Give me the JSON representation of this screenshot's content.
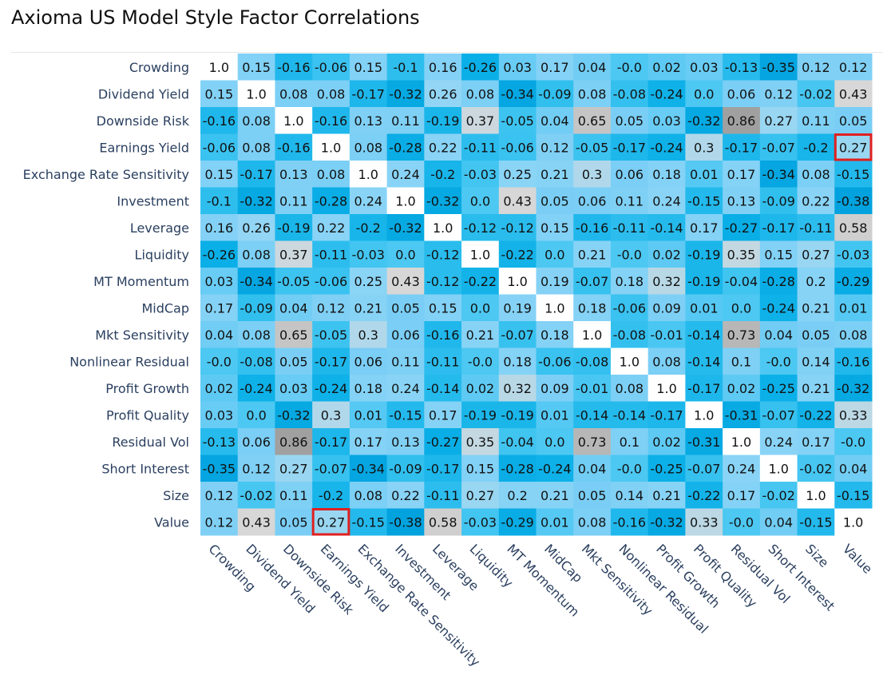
{
  "chart_data": {
    "type": "heatmap",
    "title": "Axioma US Model Style Factor Correlations",
    "labels": [
      "Crowding",
      "Dividend Yield",
      "Downside Risk",
      "Earnings Yield",
      "Exchange Rate Sensitivity",
      "Investment",
      "Leverage",
      "Liquidity",
      "MT Momentum",
      "MidCap",
      "Mkt Sensitivity",
      "Nonlinear Residual",
      "Profit Growth",
      "Profit Quality",
      "Residual Vol",
      "Short Interest",
      "Size",
      "Value"
    ],
    "values": [
      [
        "1.0",
        "0.15",
        "-0.16",
        "-0.06",
        "0.15",
        "-0.1",
        "0.16",
        "-0.26",
        "0.03",
        "0.17",
        "0.04",
        "-0.0",
        "0.02",
        "0.03",
        "-0.13",
        "-0.35",
        "0.12",
        "0.12"
      ],
      [
        "0.15",
        "1.0",
        "0.08",
        "0.08",
        "-0.17",
        "-0.32",
        "0.26",
        "0.08",
        "-0.34",
        "-0.09",
        "0.08",
        "-0.08",
        "-0.24",
        "0.0",
        "0.06",
        "0.12",
        "-0.02",
        "0.43"
      ],
      [
        "-0.16",
        "0.08",
        "1.0",
        "-0.16",
        "0.13",
        "0.11",
        "-0.19",
        "0.37",
        "-0.05",
        "0.04",
        "0.65",
        "0.05",
        "0.03",
        "-0.32",
        "0.86",
        "0.27",
        "0.11",
        "0.05"
      ],
      [
        "-0.06",
        "0.08",
        "-0.16",
        "1.0",
        "0.08",
        "-0.28",
        "0.22",
        "-0.11",
        "-0.06",
        "0.12",
        "-0.05",
        "-0.17",
        "-0.24",
        "0.3",
        "-0.17",
        "-0.07",
        "-0.2",
        "0.27"
      ],
      [
        "0.15",
        "-0.17",
        "0.13",
        "0.08",
        "1.0",
        "0.24",
        "-0.2",
        "-0.03",
        "0.25",
        "0.21",
        "0.3",
        "0.06",
        "0.18",
        "0.01",
        "0.17",
        "-0.34",
        "0.08",
        "-0.15"
      ],
      [
        "-0.1",
        "-0.32",
        "0.11",
        "-0.28",
        "0.24",
        "1.0",
        "-0.32",
        "0.0",
        "0.43",
        "0.05",
        "0.06",
        "0.11",
        "0.24",
        "-0.15",
        "0.13",
        "-0.09",
        "0.22",
        "-0.38"
      ],
      [
        "0.16",
        "0.26",
        "-0.19",
        "0.22",
        "-0.2",
        "-0.32",
        "1.0",
        "-0.12",
        "-0.12",
        "0.15",
        "-0.16",
        "-0.11",
        "-0.14",
        "0.17",
        "-0.27",
        "-0.17",
        "-0.11",
        "0.58"
      ],
      [
        "-0.26",
        "0.08",
        "0.37",
        "-0.11",
        "-0.03",
        "0.0",
        "-0.12",
        "1.0",
        "-0.22",
        "0.0",
        "0.21",
        "-0.0",
        "0.02",
        "-0.19",
        "0.35",
        "0.15",
        "0.27",
        "-0.03"
      ],
      [
        "0.03",
        "-0.34",
        "-0.05",
        "-0.06",
        "0.25",
        "0.43",
        "-0.12",
        "-0.22",
        "1.0",
        "0.19",
        "-0.07",
        "0.18",
        "0.32",
        "-0.19",
        "-0.04",
        "-0.28",
        "0.2",
        "-0.29"
      ],
      [
        "0.17",
        "-0.09",
        "0.04",
        "0.12",
        "0.21",
        "0.05",
        "0.15",
        "0.0",
        "0.19",
        "1.0",
        "0.18",
        "-0.06",
        "0.09",
        "0.01",
        "0.0",
        "-0.24",
        "0.21",
        "0.01"
      ],
      [
        "0.04",
        "0.08",
        "0.65",
        "-0.05",
        "0.3",
        "0.06",
        "-0.16",
        "0.21",
        "-0.07",
        "0.18",
        "1.0",
        "-0.08",
        "-0.01",
        "-0.14",
        "0.73",
        "0.04",
        "0.05",
        "0.08"
      ],
      [
        "-0.0",
        "-0.08",
        "0.05",
        "-0.17",
        "0.06",
        "0.11",
        "-0.11",
        "-0.0",
        "0.18",
        "-0.06",
        "-0.08",
        "1.0",
        "0.08",
        "-0.14",
        "0.1",
        "-0.0",
        "0.14",
        "-0.16"
      ],
      [
        "0.02",
        "-0.24",
        "0.03",
        "-0.24",
        "0.18",
        "0.24",
        "-0.14",
        "0.02",
        "0.32",
        "0.09",
        "-0.01",
        "0.08",
        "1.0",
        "-0.17",
        "0.02",
        "-0.25",
        "0.21",
        "-0.32"
      ],
      [
        "0.03",
        "0.0",
        "-0.32",
        "0.3",
        "0.01",
        "-0.15",
        "0.17",
        "-0.19",
        "-0.19",
        "0.01",
        "-0.14",
        "-0.14",
        "-0.17",
        "1.0",
        "-0.31",
        "-0.07",
        "-0.22",
        "0.33"
      ],
      [
        "-0.13",
        "0.06",
        "0.86",
        "-0.17",
        "0.17",
        "0.13",
        "-0.27",
        "0.35",
        "-0.04",
        "0.0",
        "0.73",
        "0.1",
        "0.02",
        "-0.31",
        "1.0",
        "0.24",
        "0.17",
        "-0.0"
      ],
      [
        "-0.35",
        "0.12",
        "0.27",
        "-0.07",
        "-0.34",
        "-0.09",
        "-0.17",
        "0.15",
        "-0.28",
        "-0.24",
        "0.04",
        "-0.0",
        "-0.25",
        "-0.07",
        "0.24",
        "1.0",
        "-0.02",
        "0.04"
      ],
      [
        "0.12",
        "-0.02",
        "0.11",
        "-0.2",
        "0.08",
        "0.22",
        "-0.11",
        "0.27",
        "0.2",
        "0.21",
        "0.05",
        "0.14",
        "0.21",
        "-0.22",
        "0.17",
        "-0.02",
        "1.0",
        "-0.15"
      ],
      [
        "0.12",
        "0.43",
        "0.05",
        "0.27",
        "-0.15",
        "-0.38",
        "0.58",
        "-0.03",
        "-0.29",
        "0.01",
        "0.08",
        "-0.16",
        "-0.32",
        "0.33",
        "-0.0",
        "0.04",
        "-0.15",
        "1.0"
      ]
    ],
    "highlighted_cells": [
      [
        3,
        17
      ],
      [
        17,
        3
      ]
    ],
    "highlight_color": "#e02020"
  }
}
